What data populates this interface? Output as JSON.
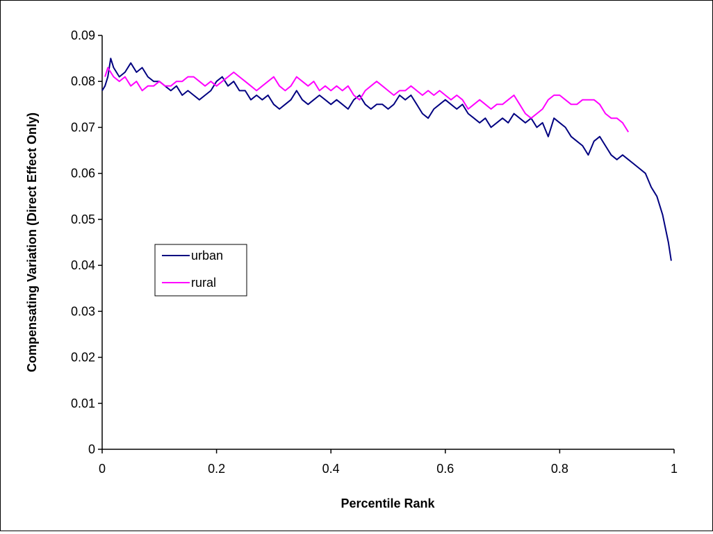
{
  "chart_data": {
    "type": "line",
    "title": "",
    "xlabel": "Percentile Rank",
    "ylabel": "Compensating Variation (Direct Effect Only)",
    "xlim": [
      0,
      1
    ],
    "ylim": [
      0,
      0.09
    ],
    "x_ticks": [
      0,
      0.2,
      0.4,
      0.6,
      0.8,
      1
    ],
    "x_tick_labels": [
      "0",
      "0.2",
      "0.4",
      "0.6",
      "0.8",
      "1"
    ],
    "y_ticks": [
      0,
      0.01,
      0.02,
      0.03,
      0.04,
      0.05,
      0.06,
      0.07,
      0.08,
      0.09
    ],
    "y_tick_labels": [
      "0",
      "0.01",
      "0.02",
      "0.03",
      "0.04",
      "0.05",
      "0.06",
      "0.07",
      "0.08",
      "0.09"
    ],
    "grid": false,
    "legend": {
      "placement": "left-center"
    },
    "series": [
      {
        "name": "urban",
        "color": "#000080",
        "points": [
          [
            0.0,
            0.078
          ],
          [
            0.005,
            0.079
          ],
          [
            0.01,
            0.081
          ],
          [
            0.015,
            0.085
          ],
          [
            0.02,
            0.083
          ],
          [
            0.03,
            0.081
          ],
          [
            0.04,
            0.082
          ],
          [
            0.05,
            0.084
          ],
          [
            0.06,
            0.082
          ],
          [
            0.07,
            0.083
          ],
          [
            0.08,
            0.081
          ],
          [
            0.09,
            0.08
          ],
          [
            0.1,
            0.08
          ],
          [
            0.11,
            0.079
          ],
          [
            0.12,
            0.078
          ],
          [
            0.13,
            0.079
          ],
          [
            0.14,
            0.077
          ],
          [
            0.15,
            0.078
          ],
          [
            0.16,
            0.077
          ],
          [
            0.17,
            0.076
          ],
          [
            0.18,
            0.077
          ],
          [
            0.19,
            0.078
          ],
          [
            0.2,
            0.08
          ],
          [
            0.21,
            0.081
          ],
          [
            0.22,
            0.079
          ],
          [
            0.23,
            0.08
          ],
          [
            0.24,
            0.078
          ],
          [
            0.25,
            0.078
          ],
          [
            0.26,
            0.076
          ],
          [
            0.27,
            0.077
          ],
          [
            0.28,
            0.076
          ],
          [
            0.29,
            0.077
          ],
          [
            0.3,
            0.075
          ],
          [
            0.31,
            0.074
          ],
          [
            0.32,
            0.075
          ],
          [
            0.33,
            0.076
          ],
          [
            0.34,
            0.078
          ],
          [
            0.35,
            0.076
          ],
          [
            0.36,
            0.075
          ],
          [
            0.37,
            0.076
          ],
          [
            0.38,
            0.077
          ],
          [
            0.39,
            0.076
          ],
          [
            0.4,
            0.075
          ],
          [
            0.41,
            0.076
          ],
          [
            0.42,
            0.075
          ],
          [
            0.43,
            0.074
          ],
          [
            0.44,
            0.076
          ],
          [
            0.45,
            0.077
          ],
          [
            0.46,
            0.075
          ],
          [
            0.47,
            0.074
          ],
          [
            0.48,
            0.075
          ],
          [
            0.49,
            0.075
          ],
          [
            0.5,
            0.074
          ],
          [
            0.51,
            0.075
          ],
          [
            0.52,
            0.077
          ],
          [
            0.53,
            0.076
          ],
          [
            0.54,
            0.077
          ],
          [
            0.55,
            0.075
          ],
          [
            0.56,
            0.073
          ],
          [
            0.57,
            0.072
          ],
          [
            0.58,
            0.074
          ],
          [
            0.59,
            0.075
          ],
          [
            0.6,
            0.076
          ],
          [
            0.61,
            0.075
          ],
          [
            0.62,
            0.074
          ],
          [
            0.63,
            0.075
          ],
          [
            0.64,
            0.073
          ],
          [
            0.65,
            0.072
          ],
          [
            0.66,
            0.071
          ],
          [
            0.67,
            0.072
          ],
          [
            0.68,
            0.07
          ],
          [
            0.69,
            0.071
          ],
          [
            0.7,
            0.072
          ],
          [
            0.71,
            0.071
          ],
          [
            0.72,
            0.073
          ],
          [
            0.73,
            0.072
          ],
          [
            0.74,
            0.071
          ],
          [
            0.75,
            0.072
          ],
          [
            0.76,
            0.07
          ],
          [
            0.77,
            0.071
          ],
          [
            0.78,
            0.068
          ],
          [
            0.79,
            0.072
          ],
          [
            0.8,
            0.071
          ],
          [
            0.81,
            0.07
          ],
          [
            0.82,
            0.068
          ],
          [
            0.83,
            0.067
          ],
          [
            0.84,
            0.066
          ],
          [
            0.85,
            0.064
          ],
          [
            0.86,
            0.067
          ],
          [
            0.87,
            0.068
          ],
          [
            0.88,
            0.066
          ],
          [
            0.89,
            0.064
          ],
          [
            0.9,
            0.063
          ],
          [
            0.91,
            0.064
          ],
          [
            0.92,
            0.063
          ],
          [
            0.93,
            0.062
          ],
          [
            0.94,
            0.061
          ],
          [
            0.95,
            0.06
          ],
          [
            0.96,
            0.057
          ],
          [
            0.97,
            0.055
          ],
          [
            0.98,
            0.051
          ],
          [
            0.99,
            0.045
          ],
          [
            0.995,
            0.041
          ]
        ]
      },
      {
        "name": "rural",
        "color": "#FF00FF",
        "points": [
          [
            0.005,
            0.081
          ],
          [
            0.01,
            0.083
          ],
          [
            0.015,
            0.082
          ],
          [
            0.02,
            0.081
          ],
          [
            0.03,
            0.08
          ],
          [
            0.04,
            0.081
          ],
          [
            0.05,
            0.079
          ],
          [
            0.06,
            0.08
          ],
          [
            0.07,
            0.078
          ],
          [
            0.08,
            0.079
          ],
          [
            0.09,
            0.079
          ],
          [
            0.1,
            0.08
          ],
          [
            0.11,
            0.079
          ],
          [
            0.12,
            0.079
          ],
          [
            0.13,
            0.08
          ],
          [
            0.14,
            0.08
          ],
          [
            0.15,
            0.081
          ],
          [
            0.16,
            0.081
          ],
          [
            0.17,
            0.08
          ],
          [
            0.18,
            0.079
          ],
          [
            0.19,
            0.08
          ],
          [
            0.2,
            0.079
          ],
          [
            0.21,
            0.08
          ],
          [
            0.22,
            0.081
          ],
          [
            0.23,
            0.082
          ],
          [
            0.24,
            0.081
          ],
          [
            0.25,
            0.08
          ],
          [
            0.26,
            0.079
          ],
          [
            0.27,
            0.078
          ],
          [
            0.28,
            0.079
          ],
          [
            0.29,
            0.08
          ],
          [
            0.3,
            0.081
          ],
          [
            0.31,
            0.079
          ],
          [
            0.32,
            0.078
          ],
          [
            0.33,
            0.079
          ],
          [
            0.34,
            0.081
          ],
          [
            0.35,
            0.08
          ],
          [
            0.36,
            0.079
          ],
          [
            0.37,
            0.08
          ],
          [
            0.38,
            0.078
          ],
          [
            0.39,
            0.079
          ],
          [
            0.4,
            0.078
          ],
          [
            0.41,
            0.079
          ],
          [
            0.42,
            0.078
          ],
          [
            0.43,
            0.079
          ],
          [
            0.44,
            0.077
          ],
          [
            0.45,
            0.076
          ],
          [
            0.46,
            0.078
          ],
          [
            0.47,
            0.079
          ],
          [
            0.48,
            0.08
          ],
          [
            0.49,
            0.079
          ],
          [
            0.5,
            0.078
          ],
          [
            0.51,
            0.077
          ],
          [
            0.52,
            0.078
          ],
          [
            0.53,
            0.078
          ],
          [
            0.54,
            0.079
          ],
          [
            0.55,
            0.078
          ],
          [
            0.56,
            0.077
          ],
          [
            0.57,
            0.078
          ],
          [
            0.58,
            0.077
          ],
          [
            0.59,
            0.078
          ],
          [
            0.6,
            0.077
          ],
          [
            0.61,
            0.076
          ],
          [
            0.62,
            0.077
          ],
          [
            0.63,
            0.076
          ],
          [
            0.64,
            0.074
          ],
          [
            0.65,
            0.075
          ],
          [
            0.66,
            0.076
          ],
          [
            0.67,
            0.075
          ],
          [
            0.68,
            0.074
          ],
          [
            0.69,
            0.075
          ],
          [
            0.7,
            0.075
          ],
          [
            0.71,
            0.076
          ],
          [
            0.72,
            0.077
          ],
          [
            0.73,
            0.075
          ],
          [
            0.74,
            0.073
          ],
          [
            0.75,
            0.072
          ],
          [
            0.76,
            0.073
          ],
          [
            0.77,
            0.074
          ],
          [
            0.78,
            0.076
          ],
          [
            0.79,
            0.077
          ],
          [
            0.8,
            0.077
          ],
          [
            0.81,
            0.076
          ],
          [
            0.82,
            0.075
          ],
          [
            0.83,
            0.075
          ],
          [
            0.84,
            0.076
          ],
          [
            0.85,
            0.076
          ],
          [
            0.86,
            0.076
          ],
          [
            0.87,
            0.075
          ],
          [
            0.88,
            0.073
          ],
          [
            0.89,
            0.072
          ],
          [
            0.9,
            0.072
          ],
          [
            0.91,
            0.071
          ],
          [
            0.915,
            0.07
          ],
          [
            0.92,
            0.069
          ]
        ]
      }
    ]
  }
}
